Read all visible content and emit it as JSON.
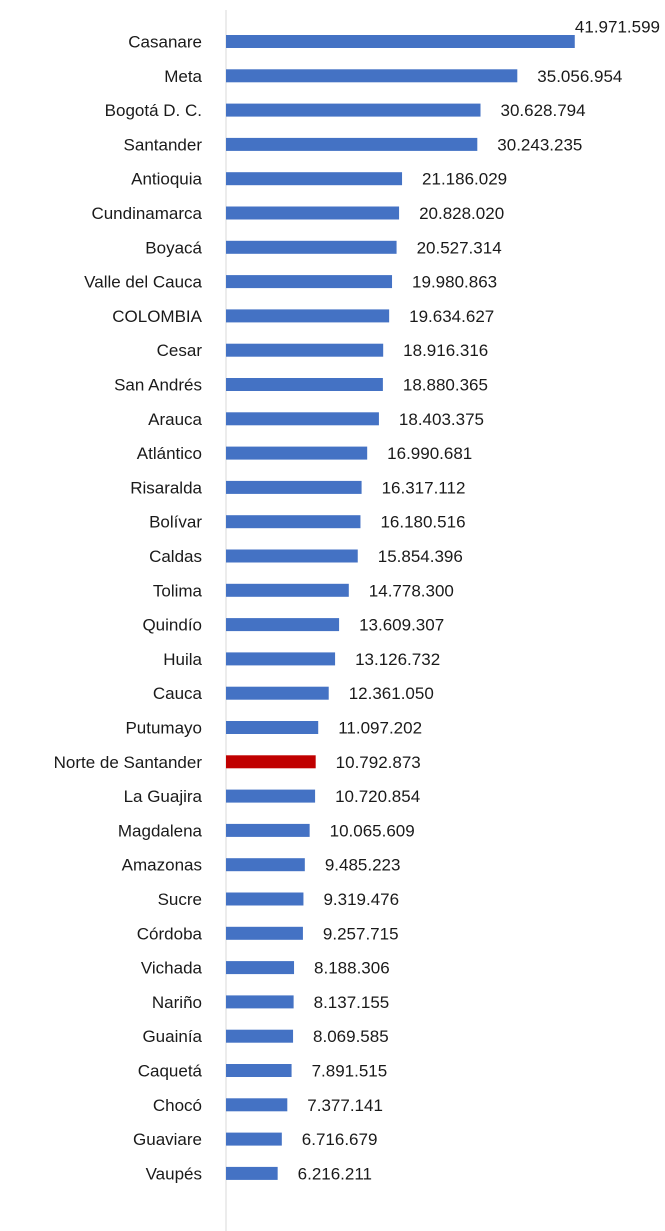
{
  "chart_data": {
    "type": "bar",
    "orientation": "horizontal",
    "title": "",
    "xlabel": "",
    "ylabel": "",
    "xlim": [
      0,
      42000000
    ],
    "grid": false,
    "legend": "none",
    "colors": {
      "default": "#4472C4",
      "highlight": "#C00000",
      "axis": "#d9d9d9"
    },
    "highlight_category": "Norte de Santander",
    "categories": [
      "Casanare",
      "Meta",
      "Bogotá D. C.",
      "Santander",
      "Antioquia",
      "Cundinamarca",
      "Boyacá",
      "Valle del Cauca",
      "COLOMBIA",
      "Cesar",
      "San Andrés",
      "Arauca",
      "Atlántico",
      "Risaralda",
      "Bolívar",
      "Caldas",
      "Tolima",
      "Quindío",
      "Huila",
      "Cauca",
      "Putumayo",
      "Norte de Santander",
      "La Guajira",
      "Magdalena",
      "Amazonas",
      "Sucre",
      "Córdoba",
      "Vichada",
      "Nariño",
      "Guainía",
      "Caquetá",
      "Chocó",
      "Guaviare",
      "Vaupés"
    ],
    "values": [
      41971599,
      35056954,
      30628794,
      30243235,
      21186029,
      20828020,
      20527314,
      19980863,
      19634627,
      18916316,
      18880365,
      18403375,
      16990681,
      16317112,
      16180516,
      15854396,
      14778300,
      13609307,
      13126732,
      12361050,
      11097202,
      10792873,
      10720854,
      10065609,
      9485223,
      9319476,
      9257715,
      8188306,
      8137155,
      8069585,
      7891515,
      7377141,
      6716679,
      6216211
    ],
    "value_labels": [
      "41.971.599",
      "35.056.954",
      "30.628.794",
      "30.243.235",
      "21.186.029",
      "20.828.020",
      "20.527.314",
      "19.980.863",
      "19.634.627",
      "18.916.316",
      "18.880.365",
      "18.403.375",
      "16.990.681",
      "16.317.112",
      "16.180.516",
      "15.854.396",
      "14.778.300",
      "13.609.307",
      "13.126.732",
      "12.361.050",
      "11.097.202",
      "10.792.873",
      "10.720.854",
      "10.065.609",
      "9.485.223",
      "9.319.476",
      "9.257.715",
      "8.188.306",
      "8.137.155",
      "8.069.585",
      "7.891.515",
      "7.377.141",
      "6.716.679",
      "6.216.211"
    ]
  }
}
